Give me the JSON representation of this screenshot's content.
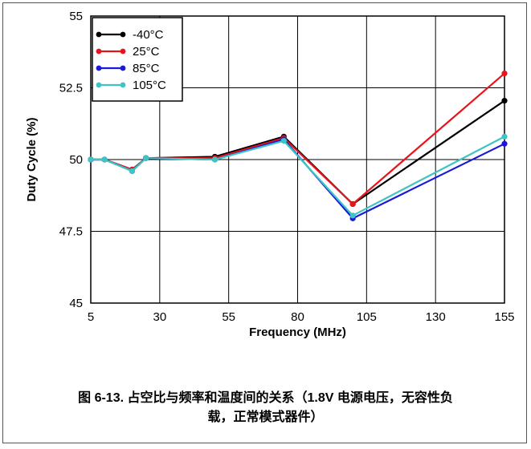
{
  "chart_data": {
    "type": "line",
    "xlabel": "Frequency (MHz)",
    "ylabel": "Duty Cycle (%)",
    "xlim": [
      5,
      155
    ],
    "ylim": [
      45,
      55
    ],
    "x_ticks": [
      "5",
      "30",
      "55",
      "80",
      "105",
      "130",
      "155"
    ],
    "y_ticks": [
      "45",
      "47.5",
      "50",
      "52.5",
      "55"
    ],
    "grid": true,
    "legend_position": "top-left",
    "series": [
      {
        "name": "-40°C",
        "color": "#000000",
        "points": [
          [
            5,
            50.0
          ],
          [
            10,
            50.0
          ],
          [
            20,
            49.65
          ],
          [
            25,
            50.05
          ],
          [
            50,
            50.1
          ],
          [
            75,
            50.8
          ],
          [
            100,
            48.45
          ],
          [
            155,
            52.05
          ]
        ]
      },
      {
        "name": "25°C",
        "color": "#e8141c",
        "points": [
          [
            5,
            50.0
          ],
          [
            10,
            50.0
          ],
          [
            20,
            49.65
          ],
          [
            25,
            50.05
          ],
          [
            50,
            50.05
          ],
          [
            75,
            50.75
          ],
          [
            100,
            48.45
          ],
          [
            155,
            53.0
          ]
        ]
      },
      {
        "name": "85°C",
        "color": "#1a1ad6",
        "points": [
          [
            5,
            50.0
          ],
          [
            10,
            50.0
          ],
          [
            20,
            49.6
          ],
          [
            25,
            50.05
          ],
          [
            50,
            50.0
          ],
          [
            75,
            50.7
          ],
          [
            100,
            47.95
          ],
          [
            155,
            50.55
          ]
        ]
      },
      {
        "name": "105°C",
        "color": "#3fc4c4",
        "points": [
          [
            5,
            50.0
          ],
          [
            10,
            50.0
          ],
          [
            20,
            49.6
          ],
          [
            25,
            50.05
          ],
          [
            50,
            50.0
          ],
          [
            75,
            50.65
          ],
          [
            100,
            48.05
          ],
          [
            155,
            50.8
          ]
        ]
      }
    ]
  },
  "caption": {
    "line1": "图 6-13. 占空比与频率和温度间的关系（1.8V 电源电压，无容性负",
    "line2": "载，正常模式器件）"
  }
}
